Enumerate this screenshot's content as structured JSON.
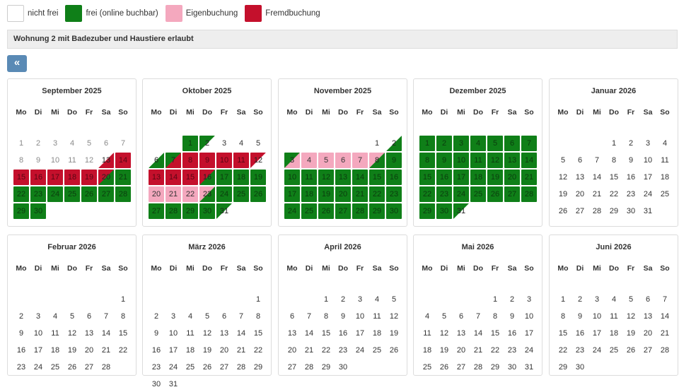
{
  "colors": {
    "none": "#ffffff",
    "free": "#0f7f18",
    "own": "#f4a8be",
    "foreign": "#c4102c",
    "button": "#5a8ab5"
  },
  "legend": [
    {
      "key": "none",
      "label": "nicht frei"
    },
    {
      "key": "free",
      "label": "frei (online buchbar)"
    },
    {
      "key": "own",
      "label": "Eigenbuchung"
    },
    {
      "key": "foreign",
      "label": "Fremdbuchung"
    }
  ],
  "info_bar": {
    "text": "Wohnung 2 mit Badezuber und Haustiere erlaubt"
  },
  "nav": {
    "prev_label": "«"
  },
  "weekdays": [
    "Mo",
    "Di",
    "Mi",
    "Do",
    "Fr",
    "Sa",
    "So"
  ],
  "months": [
    {
      "title": "September 2025",
      "first_weekday": 0,
      "days_in_month": 30,
      "status": {
        "1": "none",
        "2": "none",
        "3": "none",
        "4": "none",
        "5": "none",
        "6": "none",
        "7": "none",
        "8": "none",
        "9": "none",
        "10": "none",
        "11": "none",
        "12": "none",
        "13": "none/foreign",
        "14": "foreign",
        "15": "foreign",
        "16": "foreign",
        "17": "foreign",
        "18": "foreign",
        "19": "foreign",
        "20": "foreign/free",
        "21": "free",
        "22": "free",
        "23": "free",
        "24": "free",
        "25": "free",
        "26": "free",
        "27": "free",
        "28": "free",
        "29": "free",
        "30": "free"
      }
    },
    {
      "title": "Oktober 2025",
      "first_weekday": 2,
      "days_in_month": 31,
      "status": {
        "1": "free",
        "2": "free/none",
        "3": "none",
        "4": "none",
        "5": "none",
        "6": "none/free",
        "7": "free/foreign",
        "8": "foreign",
        "9": "foreign",
        "10": "foreign",
        "11": "foreign",
        "12": "foreign/none",
        "13": "foreign",
        "14": "foreign",
        "15": "foreign",
        "16": "foreign/free",
        "17": "free",
        "18": "free",
        "19": "free",
        "20": "own",
        "21": "own",
        "22": "own",
        "23": "own/free",
        "24": "free",
        "25": "free",
        "26": "free",
        "27": "free",
        "28": "free",
        "29": "free",
        "30": "free",
        "31": "free/none"
      }
    },
    {
      "title": "November 2025",
      "first_weekday": 5,
      "days_in_month": 30,
      "status": {
        "1": "none",
        "2": "none/free",
        "3": "free/own",
        "4": "own",
        "5": "own",
        "6": "own",
        "7": "own",
        "8": "own/free",
        "9": "free",
        "10": "free",
        "11": "free",
        "12": "free",
        "13": "free",
        "14": "free",
        "15": "free",
        "16": "free",
        "17": "free",
        "18": "free",
        "19": "free",
        "20": "free",
        "21": "free",
        "22": "free",
        "23": "free",
        "24": "free",
        "25": "free",
        "26": "free",
        "27": "free",
        "28": "free",
        "29": "free",
        "30": "free"
      }
    },
    {
      "title": "Dezember 2025",
      "first_weekday": 0,
      "days_in_month": 31,
      "status": {
        "1": "free",
        "2": "free",
        "3": "free",
        "4": "free",
        "5": "free",
        "6": "free",
        "7": "free",
        "8": "free",
        "9": "free",
        "10": "free",
        "11": "free",
        "12": "free",
        "13": "free",
        "14": "free",
        "15": "free",
        "16": "free",
        "17": "free",
        "18": "free",
        "19": "free",
        "20": "free",
        "21": "free",
        "22": "free",
        "23": "free",
        "24": "free",
        "25": "free",
        "26": "free",
        "27": "free",
        "28": "free",
        "29": "free",
        "30": "free",
        "31": "free/none"
      }
    },
    {
      "title": "Januar 2026",
      "first_weekday": 3,
      "days_in_month": 31,
      "status": {}
    },
    {
      "title": "Februar 2026",
      "first_weekday": 6,
      "days_in_month": 28,
      "status": {}
    },
    {
      "title": "März 2026",
      "first_weekday": 6,
      "days_in_month": 31,
      "status": {}
    },
    {
      "title": "April 2026",
      "first_weekday": 2,
      "days_in_month": 30,
      "status": {}
    },
    {
      "title": "Mai 2026",
      "first_weekday": 4,
      "days_in_month": 31,
      "status": {}
    },
    {
      "title": "Juni 2026",
      "first_weekday": 0,
      "days_in_month": 30,
      "status": {}
    }
  ]
}
